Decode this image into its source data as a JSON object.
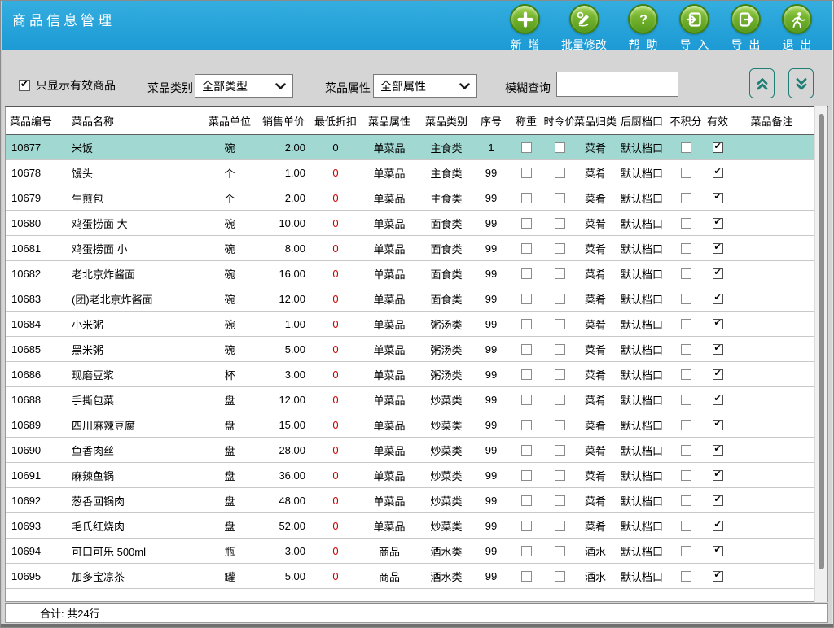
{
  "window": {
    "title": "商品信息管理"
  },
  "toolbar": {
    "buttons": [
      {
        "label": "新  增",
        "icon": "plus-icon"
      },
      {
        "label": "批量修改",
        "icon": "batch-edit-icon"
      },
      {
        "label": "帮  助",
        "icon": "question-icon"
      },
      {
        "label": "导  入",
        "icon": "import-icon"
      },
      {
        "label": "导  出",
        "icon": "export-icon"
      },
      {
        "label": "退  出",
        "icon": "exit-icon"
      }
    ]
  },
  "filters": {
    "show_valid_only_label": "只显示有效商品",
    "show_valid_only_checked": true,
    "category_label": "菜品类别",
    "category_value": "全部类型",
    "attribute_label": "菜品属性",
    "attribute_value": "全部属性",
    "search_label": "模糊查询",
    "search_value": ""
  },
  "table": {
    "columns": [
      "菜品编号",
      "菜品名称",
      "菜品单位",
      "销售单价",
      "最低折扣",
      "菜品属性",
      "菜品类别",
      "序号",
      "称重",
      "时令价",
      "菜品归类",
      "后厨档口",
      "不积分",
      "有效",
      "菜品备注"
    ],
    "rows": [
      {
        "code": "10677",
        "name": "米饭",
        "unit": "碗",
        "price": "2.00",
        "discount": "0",
        "attr": "单菜品",
        "category": "主食类",
        "seq": "1",
        "weigh": false,
        "seasonal": false,
        "group": "菜肴",
        "station": "默认档口",
        "no_points": false,
        "valid": true,
        "remark": "",
        "selected": true
      },
      {
        "code": "10678",
        "name": "馒头",
        "unit": "个",
        "price": "1.00",
        "discount": "0",
        "attr": "单菜品",
        "category": "主食类",
        "seq": "99",
        "weigh": false,
        "seasonal": false,
        "group": "菜肴",
        "station": "默认档口",
        "no_points": false,
        "valid": true,
        "remark": "",
        "selected": false
      },
      {
        "code": "10679",
        "name": "生煎包",
        "unit": "个",
        "price": "2.00",
        "discount": "0",
        "attr": "单菜品",
        "category": "主食类",
        "seq": "99",
        "weigh": false,
        "seasonal": false,
        "group": "菜肴",
        "station": "默认档口",
        "no_points": false,
        "valid": true,
        "remark": "",
        "selected": false
      },
      {
        "code": "10680",
        "name": "鸡蛋捞面 大",
        "unit": "碗",
        "price": "10.00",
        "discount": "0",
        "attr": "单菜品",
        "category": "面食类",
        "seq": "99",
        "weigh": false,
        "seasonal": false,
        "group": "菜肴",
        "station": "默认档口",
        "no_points": false,
        "valid": true,
        "remark": "",
        "selected": false
      },
      {
        "code": "10681",
        "name": "鸡蛋捞面 小",
        "unit": "碗",
        "price": "8.00",
        "discount": "0",
        "attr": "单菜品",
        "category": "面食类",
        "seq": "99",
        "weigh": false,
        "seasonal": false,
        "group": "菜肴",
        "station": "默认档口",
        "no_points": false,
        "valid": true,
        "remark": "",
        "selected": false
      },
      {
        "code": "10682",
        "name": "老北京炸酱面",
        "unit": "碗",
        "price": "16.00",
        "discount": "0",
        "attr": "单菜品",
        "category": "面食类",
        "seq": "99",
        "weigh": false,
        "seasonal": false,
        "group": "菜肴",
        "station": "默认档口",
        "no_points": false,
        "valid": true,
        "remark": "",
        "selected": false
      },
      {
        "code": "10683",
        "name": "(团)老北京炸酱面",
        "unit": "碗",
        "price": "12.00",
        "discount": "0",
        "attr": "单菜品",
        "category": "面食类",
        "seq": "99",
        "weigh": false,
        "seasonal": false,
        "group": "菜肴",
        "station": "默认档口",
        "no_points": false,
        "valid": true,
        "remark": "",
        "selected": false
      },
      {
        "code": "10684",
        "name": "小米粥",
        "unit": "碗",
        "price": "1.00",
        "discount": "0",
        "attr": "单菜品",
        "category": "粥汤类",
        "seq": "99",
        "weigh": false,
        "seasonal": false,
        "group": "菜肴",
        "station": "默认档口",
        "no_points": false,
        "valid": true,
        "remark": "",
        "selected": false
      },
      {
        "code": "10685",
        "name": "黑米粥",
        "unit": "碗",
        "price": "5.00",
        "discount": "0",
        "attr": "单菜品",
        "category": "粥汤类",
        "seq": "99",
        "weigh": false,
        "seasonal": false,
        "group": "菜肴",
        "station": "默认档口",
        "no_points": false,
        "valid": true,
        "remark": "",
        "selected": false
      },
      {
        "code": "10686",
        "name": "现磨豆浆",
        "unit": "杯",
        "price": "3.00",
        "discount": "0",
        "attr": "单菜品",
        "category": "粥汤类",
        "seq": "99",
        "weigh": false,
        "seasonal": false,
        "group": "菜肴",
        "station": "默认档口",
        "no_points": false,
        "valid": true,
        "remark": "",
        "selected": false
      },
      {
        "code": "10688",
        "name": "手撕包菜",
        "unit": "盘",
        "price": "12.00",
        "discount": "0",
        "attr": "单菜品",
        "category": "炒菜类",
        "seq": "99",
        "weigh": false,
        "seasonal": false,
        "group": "菜肴",
        "station": "默认档口",
        "no_points": false,
        "valid": true,
        "remark": "",
        "selected": false
      },
      {
        "code": "10689",
        "name": "四川麻辣豆腐",
        "unit": "盘",
        "price": "15.00",
        "discount": "0",
        "attr": "单菜品",
        "category": "炒菜类",
        "seq": "99",
        "weigh": false,
        "seasonal": false,
        "group": "菜肴",
        "station": "默认档口",
        "no_points": false,
        "valid": true,
        "remark": "",
        "selected": false
      },
      {
        "code": "10690",
        "name": "鱼香肉丝",
        "unit": "盘",
        "price": "28.00",
        "discount": "0",
        "attr": "单菜品",
        "category": "炒菜类",
        "seq": "99",
        "weigh": false,
        "seasonal": false,
        "group": "菜肴",
        "station": "默认档口",
        "no_points": false,
        "valid": true,
        "remark": "",
        "selected": false
      },
      {
        "code": "10691",
        "name": "麻辣鱼锅",
        "unit": "盘",
        "price": "36.00",
        "discount": "0",
        "attr": "单菜品",
        "category": "炒菜类",
        "seq": "99",
        "weigh": false,
        "seasonal": false,
        "group": "菜肴",
        "station": "默认档口",
        "no_points": false,
        "valid": true,
        "remark": "",
        "selected": false
      },
      {
        "code": "10692",
        "name": "葱香回锅肉",
        "unit": "盘",
        "price": "48.00",
        "discount": "0",
        "attr": "单菜品",
        "category": "炒菜类",
        "seq": "99",
        "weigh": false,
        "seasonal": false,
        "group": "菜肴",
        "station": "默认档口",
        "no_points": false,
        "valid": true,
        "remark": "",
        "selected": false
      },
      {
        "code": "10693",
        "name": "毛氏红烧肉",
        "unit": "盘",
        "price": "52.00",
        "discount": "0",
        "attr": "单菜品",
        "category": "炒菜类",
        "seq": "99",
        "weigh": false,
        "seasonal": false,
        "group": "菜肴",
        "station": "默认档口",
        "no_points": false,
        "valid": true,
        "remark": "",
        "selected": false
      },
      {
        "code": "10694",
        "name": "可口可乐 500ml",
        "unit": "瓶",
        "price": "3.00",
        "discount": "0",
        "attr": "商品",
        "category": "酒水类",
        "seq": "99",
        "weigh": false,
        "seasonal": false,
        "group": "酒水",
        "station": "默认档口",
        "no_points": false,
        "valid": true,
        "remark": "",
        "selected": false
      },
      {
        "code": "10695",
        "name": "加多宝凉茶",
        "unit": "罐",
        "price": "5.00",
        "discount": "0",
        "attr": "商品",
        "category": "酒水类",
        "seq": "99",
        "weigh": false,
        "seasonal": false,
        "group": "酒水",
        "station": "默认档口",
        "no_points": false,
        "valid": true,
        "remark": "",
        "selected": false
      }
    ]
  },
  "footer": {
    "total": "合计: 共24行"
  },
  "colors": {
    "titlebar_blue": "#27A3DA",
    "button_green": "#6FAF2A",
    "selected_row_teal": "#A2D8D2",
    "discount_red": "#CC0000",
    "chevron_teal": "#1F7E76"
  }
}
